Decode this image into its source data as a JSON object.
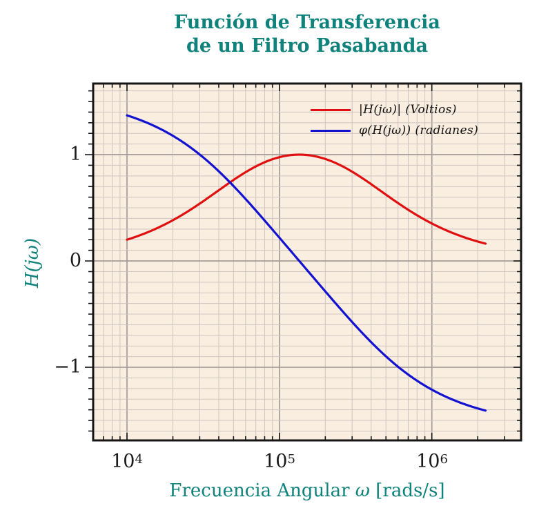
{
  "title": {
    "line1": "Función de Transferencia",
    "line2": "de un Filtro Pasabanda"
  },
  "colors": {
    "accent_teal": "#0f827b",
    "magnitude_red": "#e01010",
    "phase_blue": "#1212d0",
    "plot_background": "#faeee0",
    "grid_minor": "#cfc5bf",
    "grid_major": "#a59c98",
    "spine": "#151515",
    "figure_background": "#ffffff",
    "tick_text": "#1a1a1a"
  },
  "axes": {
    "x_label_prefix": "Frecuencia Angular ",
    "x_label_symbol": "ω",
    "x_label_suffix": " [rads/s]",
    "y_label": "H(jω)"
  },
  "legend": [
    {
      "label": "|H(jω)| (Voltios)",
      "color": "#e01010"
    },
    {
      "label": "φ(H(jω)) (radianes)",
      "color": "#1212d0"
    }
  ],
  "chart_data": {
    "type": "line",
    "x_scale": "log",
    "x_axis_label": "Frecuencia Angular ω [rads/s]",
    "y_axis_label": "H(jω)",
    "x_range": [
      6000,
      3850000
    ],
    "y_range": [
      -1.688,
      1.669
    ],
    "grid": {
      "x_minor": "log decades 2-9",
      "y_minor_step": 0.1,
      "y_major_step": 1
    },
    "legend_position": "upper right, no frame",
    "x_ticks": [
      {
        "mantissa": "10",
        "exp": "4",
        "value": 10000
      },
      {
        "mantissa": "10",
        "exp": "5",
        "value": 100000
      },
      {
        "mantissa": "10",
        "exp": "6",
        "value": 1000000
      }
    ],
    "y_ticks": [
      {
        "label": "1",
        "value": 1
      },
      {
        "label": "0",
        "value": 0
      },
      {
        "label": "−1",
        "value": -1
      }
    ],
    "model": {
      "type": "bandpass",
      "omega0": 135000,
      "q": 0.365,
      "omega_min": 10000,
      "omega_max": 2250000
    },
    "series": [
      {
        "name": "|H(jω)| (Voltios)",
        "color": "#e01010",
        "points": [
          [
            10000,
            0.2
          ],
          [
            15000,
            0.294
          ],
          [
            22000,
            0.417
          ],
          [
            33000,
            0.58
          ],
          [
            50000,
            0.762
          ],
          [
            75000,
            0.911
          ],
          [
            110000,
            0.989
          ],
          [
            135000,
            1.0
          ],
          [
            170000,
            0.986
          ],
          [
            250000,
            0.902
          ],
          [
            370000,
            0.755
          ],
          [
            550000,
            0.582
          ],
          [
            820000,
            0.421
          ],
          [
            1200000,
            0.298
          ],
          [
            1600000,
            0.227
          ],
          [
            2000000,
            0.183
          ],
          [
            2250000,
            0.163
          ]
        ]
      },
      {
        "name": "φ(H(jω)) (radianes)",
        "color": "#1212d0",
        "points": [
          [
            10000,
            1.369
          ],
          [
            15000,
            1.272
          ],
          [
            22000,
            1.141
          ],
          [
            33000,
            0.952
          ],
          [
            50000,
            0.705
          ],
          [
            75000,
            0.426
          ],
          [
            110000,
            0.149
          ],
          [
            135000,
            0.0
          ],
          [
            170000,
            -0.168
          ],
          [
            250000,
            -0.447
          ],
          [
            370000,
            -0.714
          ],
          [
            550000,
            -0.95
          ],
          [
            820000,
            -1.137
          ],
          [
            1200000,
            -1.268
          ],
          [
            1600000,
            -1.342
          ],
          [
            2000000,
            -1.387
          ],
          [
            2250000,
            -1.407
          ]
        ]
      }
    ]
  }
}
